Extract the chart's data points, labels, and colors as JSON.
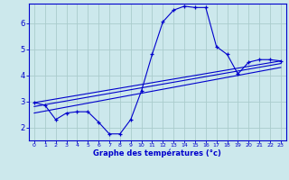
{
  "xlabel": "Graphe des températures (°c)",
  "bg_color": "#cce8ec",
  "line_color": "#0000cc",
  "grid_color": "#aacccc",
  "xlim": [
    -0.5,
    23.5
  ],
  "ylim": [
    1.5,
    6.75
  ],
  "yticks": [
    2,
    3,
    4,
    5,
    6
  ],
  "xticks": [
    0,
    1,
    2,
    3,
    4,
    5,
    6,
    7,
    8,
    9,
    10,
    11,
    12,
    13,
    14,
    15,
    16,
    17,
    18,
    19,
    20,
    21,
    22,
    23
  ],
  "series1_x": [
    0,
    1,
    2,
    3,
    4,
    5,
    6,
    7,
    8,
    9,
    10,
    11,
    12,
    13,
    14,
    15,
    16,
    17,
    18,
    19,
    20,
    21,
    22,
    23
  ],
  "series1_y": [
    2.95,
    2.85,
    2.3,
    2.55,
    2.6,
    2.6,
    2.2,
    1.75,
    1.75,
    2.3,
    3.4,
    4.8,
    6.05,
    6.5,
    6.65,
    6.6,
    6.6,
    5.1,
    4.8,
    4.05,
    4.5,
    4.6,
    4.6,
    4.55
  ],
  "series2_x": [
    0,
    23
  ],
  "series2_y": [
    2.95,
    4.55
  ],
  "series3_x": [
    0,
    23
  ],
  "series3_y": [
    2.8,
    4.45
  ],
  "series4_x": [
    0,
    23
  ],
  "series4_y": [
    2.55,
    4.3
  ]
}
